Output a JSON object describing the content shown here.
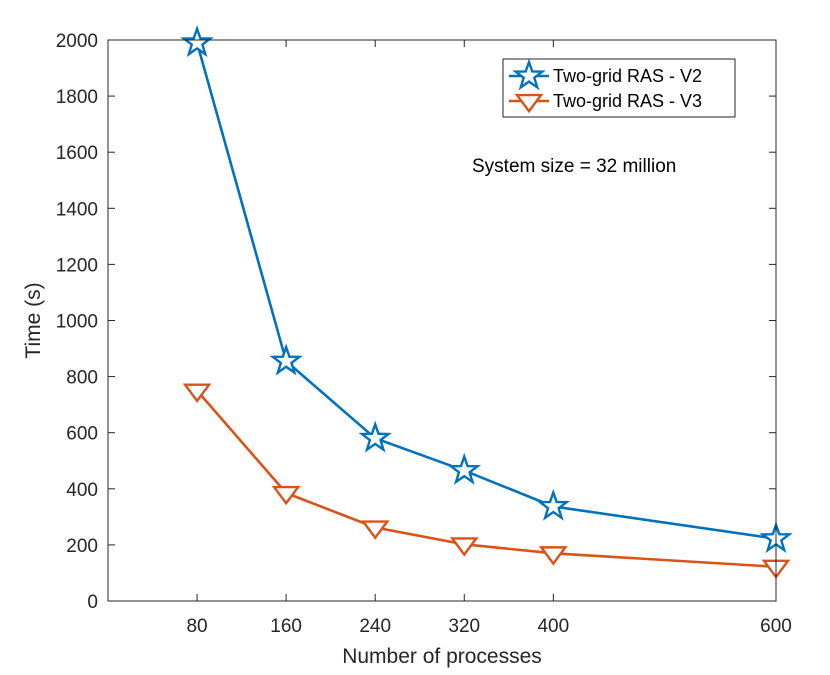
{
  "chart_data": {
    "type": "line",
    "title": "",
    "xlabel": "Number of processes",
    "ylabel": "Time (s)",
    "x": [
      80,
      160,
      240,
      320,
      400,
      600
    ],
    "xticks": [
      80,
      160,
      240,
      320,
      400,
      600
    ],
    "yticks": [
      0,
      200,
      400,
      600,
      800,
      1000,
      1200,
      1400,
      1600,
      1800,
      2000
    ],
    "xlim": [
      0,
      600
    ],
    "ylim": [
      0,
      2000
    ],
    "grid": false,
    "legend_position": "top-right",
    "series": [
      {
        "name": "Two-grid RAS - V2",
        "color": "#0072BD",
        "marker": "star",
        "values": [
          1990,
          855,
          580,
          465,
          337,
          222
        ]
      },
      {
        "name": "Two-grid RAS - V3",
        "color": "#D95319",
        "marker": "triangle-down",
        "values": [
          750,
          385,
          262,
          202,
          170,
          122
        ]
      }
    ],
    "annotations": [
      {
        "text": "System size = 32 million"
      }
    ]
  }
}
